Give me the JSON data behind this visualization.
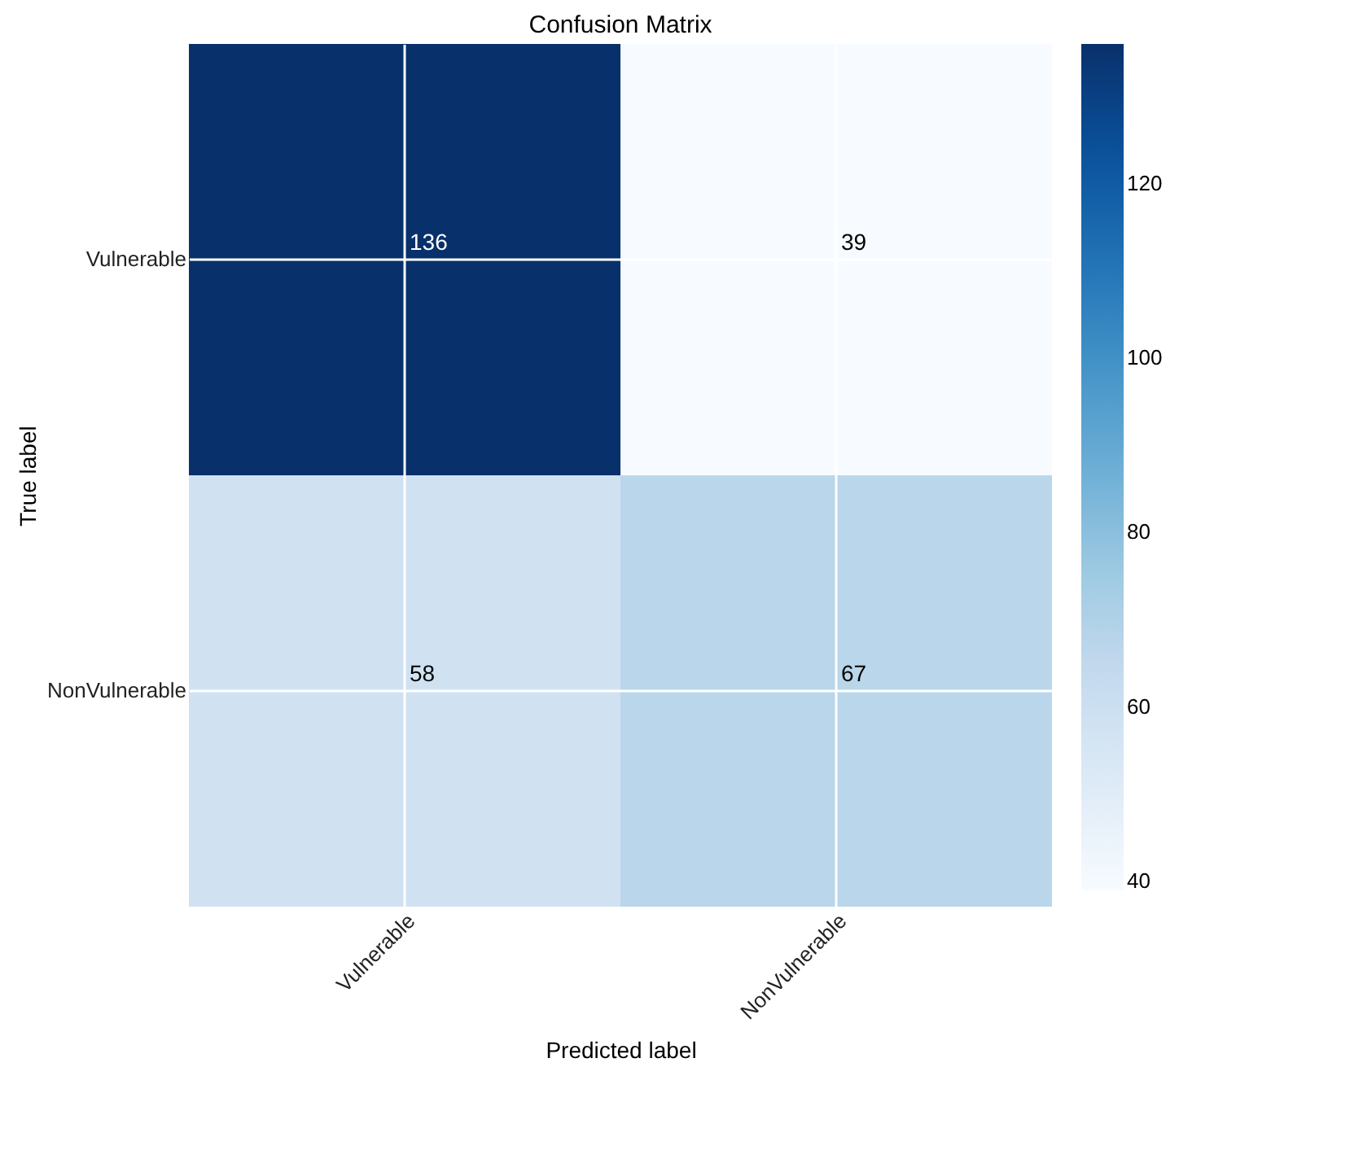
{
  "chart_data": {
    "type": "heatmap",
    "title": "Confusion Matrix",
    "xlabel": "Predicted label",
    "ylabel": "True label",
    "categories": [
      "Vulnerable",
      "NonVulnerable"
    ],
    "y_categories": [
      "Vulnerable",
      "NonVulnerable"
    ],
    "cells": [
      [
        136,
        39
      ],
      [
        58,
        67
      ]
    ],
    "clim": [
      39,
      136
    ],
    "cticks": [
      40,
      60,
      80,
      100,
      120
    ],
    "data_labels": true,
    "grid": true
  }
}
